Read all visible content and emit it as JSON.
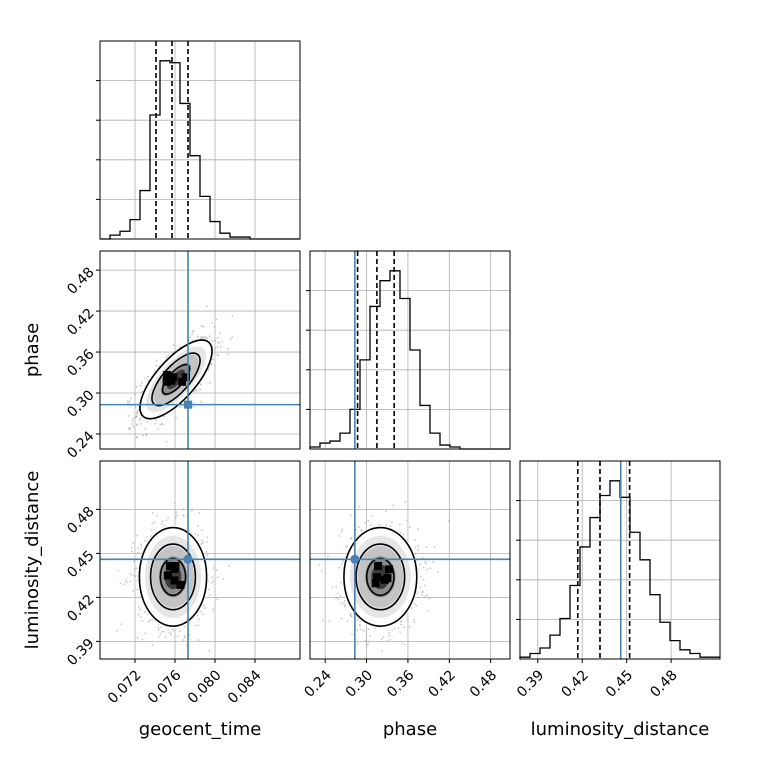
{
  "chart_data": {
    "type": "corner",
    "parameters": [
      "geocent_time",
      "phase",
      "luminosity_distance"
    ],
    "truth": {
      "geocent_time": 0.0773,
      "phase": 0.283,
      "luminosity_distance": 0.446
    },
    "ranges": {
      "geocent_time": [
        0.0685,
        0.0885
      ],
      "phase": [
        0.218,
        0.508
      ],
      "luminosity_distance": [
        0.378,
        0.513
      ]
    },
    "ticks": {
      "geocent_time": [
        "0.072",
        "0.076",
        "0.080",
        "0.084"
      ],
      "phase": [
        "0.24",
        "0.30",
        "0.36",
        "0.42",
        "0.48"
      ],
      "luminosity_distance": [
        "0.39",
        "0.42",
        "0.45",
        "0.48"
      ]
    },
    "quantiles": {
      "geocent_time": [
        0.0741,
        0.0757,
        0.0773
      ],
      "phase": [
        0.287,
        0.315,
        0.34
      ],
      "luminosity_distance": [
        0.417,
        0.432,
        0.452
      ]
    },
    "histograms": {
      "geocent_time": {
        "edges_range": [
          0.0685,
          0.0885
        ],
        "counts": [
          0,
          2,
          4,
          10,
          25,
          64,
          92,
          91,
          70,
          43,
          22,
          9,
          3,
          1,
          1,
          0,
          0,
          0,
          0,
          0
        ]
      },
      "phase": {
        "edges_range": [
          0.218,
          0.508
        ],
        "counts": [
          1,
          3,
          4,
          8,
          20,
          45,
          72,
          85,
          90,
          76,
          50,
          22,
          8,
          2,
          1,
          0,
          0,
          0,
          0,
          0
        ]
      },
      "luminosity_distance": {
        "edges_range": [
          0.378,
          0.513
        ],
        "counts": [
          1,
          3,
          6,
          13,
          22,
          40,
          61,
          77,
          89,
          97,
          88,
          69,
          54,
          35,
          20,
          10,
          5,
          3,
          1,
          1
        ]
      }
    },
    "pairs": [
      {
        "x": "geocent_time",
        "y": "phase",
        "mean": [
          0.0761,
          0.32
        ],
        "sigma": [
          0.0015,
          0.024
        ],
        "rho": 0.72
      },
      {
        "x": "geocent_time",
        "y": "luminosity_distance",
        "mean": [
          0.0758,
          0.434
        ],
        "sigma": [
          0.0014,
          0.014
        ],
        "rho": 0.0
      },
      {
        "x": "phase",
        "y": "luminosity_distance",
        "mean": [
          0.32,
          0.434
        ],
        "sigma": [
          0.022,
          0.014
        ],
        "rho": 0.0
      }
    ],
    "grid": true,
    "colors": {
      "line": "#000000",
      "truth": "#4682b4",
      "grid": "#b0b0b0"
    }
  }
}
